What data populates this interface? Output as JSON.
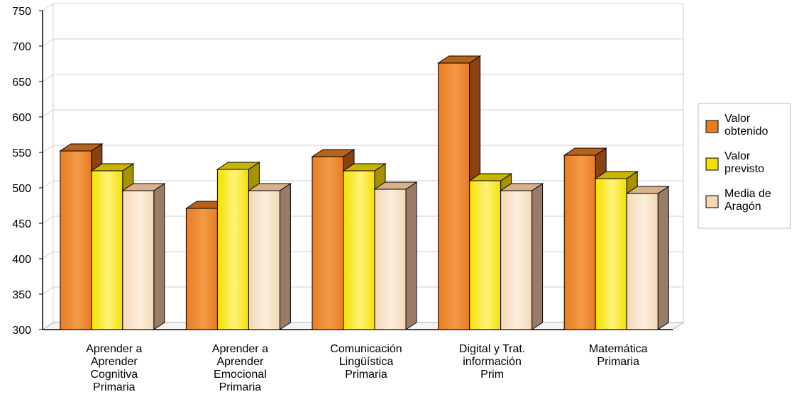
{
  "chart_data": {
    "type": "bar",
    "categories": [
      [
        "Aprender a",
        "Aprender",
        "Cognitiva",
        "Primaria"
      ],
      [
        "Aprender a",
        "Aprender",
        "Emocional",
        "Primaria"
      ],
      [
        "Comunicación",
        "Lingüística",
        "Primaria"
      ],
      [
        "Digital y Trat.",
        "información",
        "Prim"
      ],
      [
        "Matemática",
        "Primaria"
      ]
    ],
    "series": [
      {
        "name": [
          "Valor",
          "obtenido"
        ],
        "values": [
          552,
          471,
          544,
          676,
          546
        ],
        "colors": {
          "front": "#e87c22",
          "frontLight": "#f29a48",
          "side": "#8a4212",
          "top": "#b8621c"
        }
      },
      {
        "name": [
          "Valor",
          "previsto"
        ],
        "values": [
          524,
          526,
          524,
          510,
          513
        ],
        "colors": {
          "front": "#f4e000",
          "frontLight": "#fff27a",
          "side": "#a69200",
          "top": "#c9b400"
        }
      },
      {
        "name": [
          "Media de",
          "Aragón"
        ],
        "values": [
          496,
          496,
          498,
          496,
          492
        ],
        "colors": {
          "front": "#f4d8b6",
          "frontLight": "#fbeedc",
          "side": "#9a7b68",
          "top": "#d9b08c"
        }
      }
    ],
    "ylim": [
      300,
      750
    ],
    "yticks": [
      300,
      350,
      400,
      450,
      500,
      550,
      600,
      650,
      700,
      750
    ],
    "grid": true,
    "legend_position": "right"
  }
}
